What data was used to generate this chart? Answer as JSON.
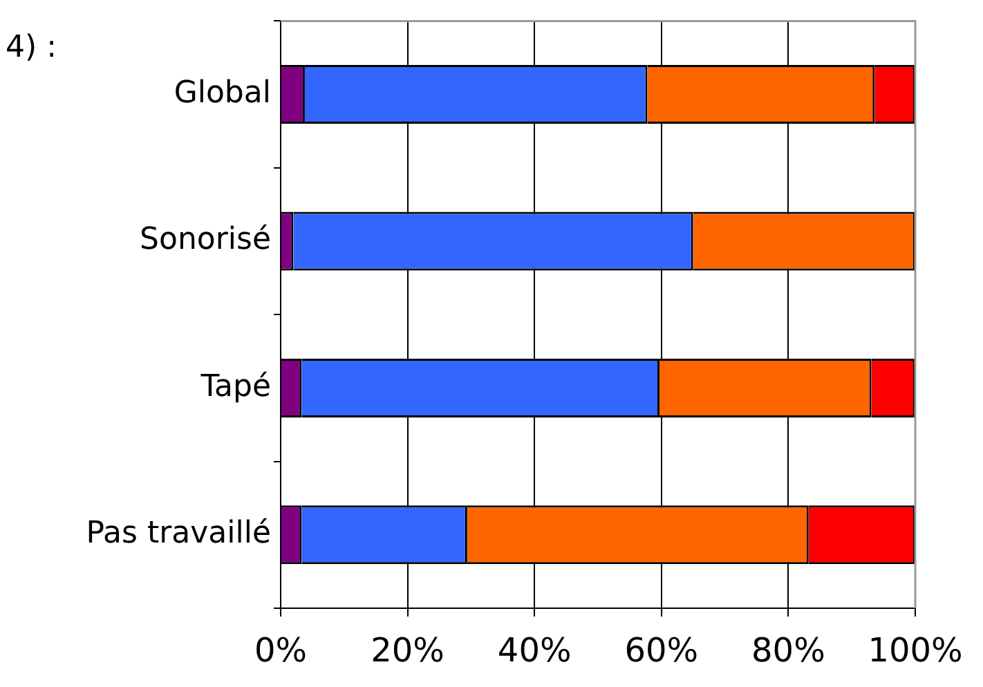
{
  "chart_data": {
    "type": "bar",
    "orientation": "horizontal",
    "stacked": true,
    "categories": [
      "Global",
      "Sonorisé",
      "Tapé",
      "Pas travaillé"
    ],
    "series": [
      {
        "color": "#800080",
        "values": [
          3.8,
          2,
          3.3,
          3.3
        ]
      },
      {
        "color": "#3366ff",
        "values": [
          54,
          63,
          56.4,
          26.1
        ]
      },
      {
        "color": "#ff6600",
        "values": [
          35.8,
          35,
          33.4,
          53.8
        ]
      },
      {
        "color": "#ff0000",
        "values": [
          6.4,
          0,
          6.9,
          16.8
        ]
      }
    ],
    "xlim": [
      0,
      100
    ],
    "xticks": [
      {
        "value": 0,
        "label": "0%"
      },
      {
        "value": 20,
        "label": "20%"
      },
      {
        "value": 40,
        "label": "40%"
      },
      {
        "value": 60,
        "label": "60%"
      },
      {
        "value": 80,
        "label": "80%"
      },
      {
        "value": 100,
        "label": "100%"
      }
    ],
    "grid": "x",
    "legend": false,
    "annotations": [
      "4) :"
    ]
  }
}
